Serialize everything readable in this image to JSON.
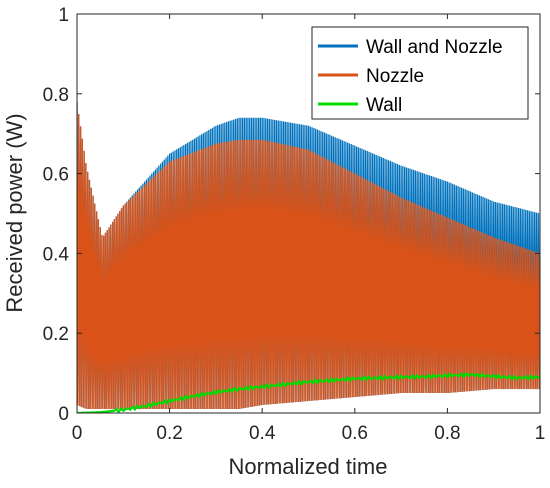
{
  "chart_data": {
    "type": "line",
    "xlabel": "Normalized time",
    "ylabel": "Received power (W)",
    "xlim": [
      0,
      1
    ],
    "ylim": [
      0,
      1
    ],
    "xticks": [
      0,
      0.2,
      0.4,
      0.6,
      0.8,
      1
    ],
    "yticks": [
      0,
      0.2,
      0.4,
      0.6,
      0.8,
      1
    ],
    "xtick_labels": [
      "0",
      "0.2",
      "0.4",
      "0.6",
      "0.8",
      "1"
    ],
    "ytick_labels": [
      "0",
      "0.2",
      "0.4",
      "0.6",
      "0.8",
      "1"
    ],
    "grid": false,
    "legend_position": "top-right",
    "oscillation_note_free": true,
    "series": [
      {
        "name": "Wall and Nozzle",
        "color": "#0072BD",
        "envelope_x": [
          0,
          0.02,
          0.055,
          0.1,
          0.2,
          0.3,
          0.35,
          0.4,
          0.5,
          0.6,
          0.7,
          0.8,
          0.9,
          1.0
        ],
        "upper": [
          0.78,
          0.62,
          0.44,
          0.52,
          0.65,
          0.72,
          0.74,
          0.74,
          0.72,
          0.67,
          0.62,
          0.58,
          0.53,
          0.5
        ],
        "lower": [
          0.02,
          0.01,
          0.01,
          0.01,
          0.01,
          0.01,
          0.01,
          0.02,
          0.03,
          0.04,
          0.05,
          0.05,
          0.06,
          0.06
        ]
      },
      {
        "name": "Nozzle",
        "color": "#D95319",
        "envelope_x": [
          0,
          0.02,
          0.055,
          0.1,
          0.2,
          0.3,
          0.35,
          0.4,
          0.5,
          0.6,
          0.7,
          0.8,
          0.9,
          1.0
        ],
        "upper": [
          0.78,
          0.62,
          0.44,
          0.52,
          0.63,
          0.675,
          0.685,
          0.685,
          0.66,
          0.6,
          0.54,
          0.49,
          0.44,
          0.4
        ],
        "lower": [
          0.02,
          0.01,
          0.01,
          0.01,
          0.01,
          0.01,
          0.01,
          0.02,
          0.03,
          0.04,
          0.05,
          0.05,
          0.06,
          0.06
        ]
      },
      {
        "name": "Wall",
        "color": "#00DD00",
        "x": [
          0,
          0.05,
          0.1,
          0.15,
          0.2,
          0.25,
          0.3,
          0.35,
          0.4,
          0.45,
          0.5,
          0.55,
          0.6,
          0.65,
          0.7,
          0.75,
          0.8,
          0.85,
          0.9,
          0.95,
          1.0
        ],
        "y": [
          0.0,
          0.002,
          0.008,
          0.018,
          0.03,
          0.042,
          0.052,
          0.06,
          0.066,
          0.072,
          0.078,
          0.082,
          0.086,
          0.088,
          0.09,
          0.091,
          0.094,
          0.096,
          0.092,
          0.088,
          0.09
        ]
      }
    ]
  }
}
